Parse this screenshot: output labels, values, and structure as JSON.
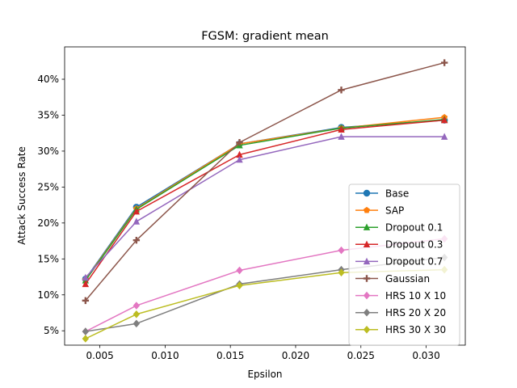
{
  "chart_data": {
    "type": "line",
    "title": "FGSM: gradient mean",
    "xlabel": "Epsilon",
    "ylabel": "Attack Success Rate",
    "xlim": [
      0.0023,
      0.033
    ],
    "ylim": [
      0.03,
      0.445
    ],
    "x": [
      0.0039,
      0.0078,
      0.0157,
      0.0235,
      0.0314
    ],
    "x_ticks": [
      0.005,
      0.01,
      0.015,
      0.02,
      0.025,
      0.03
    ],
    "x_tick_labels": [
      "0.005",
      "0.010",
      "0.015",
      "0.020",
      "0.025",
      "0.030"
    ],
    "y_ticks": [
      0.05,
      0.1,
      0.15,
      0.2,
      0.25,
      0.3,
      0.35,
      0.4
    ],
    "y_tick_labels": [
      "5%",
      "10%",
      "15%",
      "20%",
      "25%",
      "30%",
      "35%",
      "40%"
    ],
    "grid": false,
    "legend_position": "lower-right",
    "series": [
      {
        "name": "Base",
        "color": "#1f77b4",
        "marker": "circle",
        "values": [
          0.122,
          0.222,
          0.31,
          0.333,
          0.343
        ]
      },
      {
        "name": "SAP",
        "color": "#ff7f0e",
        "marker": "pentagon",
        "values": [
          0.121,
          0.22,
          0.31,
          0.332,
          0.347
        ]
      },
      {
        "name": "Dropout 0.1",
        "color": "#2ca02c",
        "marker": "triangle-up",
        "values": [
          0.12,
          0.219,
          0.308,
          0.332,
          0.344
        ]
      },
      {
        "name": "Dropout 0.3",
        "color": "#d62728",
        "marker": "triangle-up",
        "values": [
          0.115,
          0.216,
          0.295,
          0.33,
          0.343
        ]
      },
      {
        "name": "Dropout 0.7",
        "color": "#9467bd",
        "marker": "triangle-up",
        "values": [
          0.124,
          0.202,
          0.288,
          0.32,
          0.32
        ]
      },
      {
        "name": "Gaussian",
        "color": "#8c564b",
        "marker": "plus",
        "values": [
          0.092,
          0.176,
          0.312,
          0.385,
          0.423
        ]
      },
      {
        "name": "HRS 10 X 10",
        "color": "#e377c2",
        "marker": "diamond",
        "values": [
          0.049,
          0.085,
          0.134,
          0.162,
          0.178
        ]
      },
      {
        "name": "HRS 20 X 20",
        "color": "#7f7f7f",
        "marker": "diamond",
        "values": [
          0.049,
          0.06,
          0.115,
          0.135,
          0.152
        ]
      },
      {
        "name": "HRS 30 X 30",
        "color": "#bcbd22",
        "marker": "diamond",
        "values": [
          0.039,
          0.073,
          0.113,
          0.131,
          0.135
        ]
      }
    ]
  }
}
